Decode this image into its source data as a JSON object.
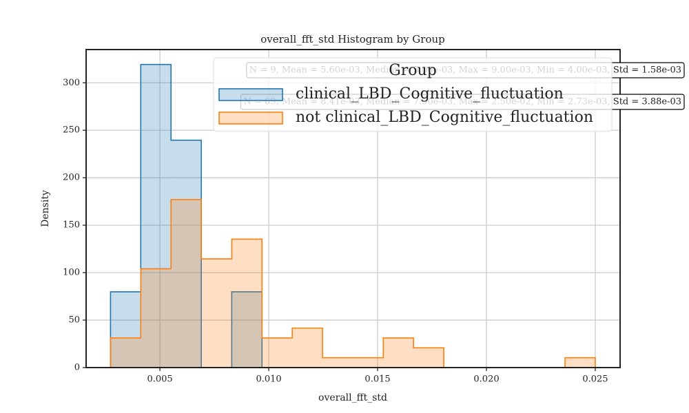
{
  "chart_data": {
    "type": "histogram",
    "title": "overall_fft_std Histogram by Group",
    "xlabel": "overall_fft_std",
    "ylabel": "Density",
    "bins": [
      0.00273,
      0.00412,
      0.00551,
      0.0069,
      0.0083,
      0.00969,
      0.01108,
      0.01247,
      0.01387,
      0.01526,
      0.01665,
      0.01804,
      0.01943,
      0.02083,
      0.02222,
      0.02361,
      0.025
    ],
    "series": [
      {
        "name": "clinical_LBD_Cognitive_fluctuation",
        "color": "#1f77b4",
        "values": [
          79.8,
          319.3,
          239.5,
          0,
          79.8,
          0,
          0,
          0,
          0,
          0,
          0,
          0,
          0,
          0,
          0,
          0
        ]
      },
      {
        "name": "not clinical_LBD_Cognitive_fluctuation",
        "color": "#ff7f0e",
        "values": [
          31.2,
          104.1,
          177.0,
          114.5,
          135.3,
          31.2,
          41.6,
          10.4,
          10.4,
          31.2,
          20.8,
          0,
          0,
          0,
          0,
          10.4
        ]
      }
    ],
    "legend_title": "Group",
    "legend": "upper right",
    "annotations": [
      "N = 9, Mean = 5.60e-03, Median = 5.00e-03, Max = 9.00e-03, Min = 4.00e-03, Std = 1.58e-03",
      "N = 69, Mean = 8.41e-03, Median = 7.50e-03, Max = 2.50e-02, Min = 2.73e-03, Std = 3.88e-03"
    ],
    "xlim": [
      0.00161,
      0.02614
    ],
    "ylim": [
      0,
      335
    ],
    "xticks": [
      {
        "value": 0.005,
        "label": "0.005"
      },
      {
        "value": 0.01,
        "label": "0.010"
      },
      {
        "value": 0.015,
        "label": "0.015"
      },
      {
        "value": 0.02,
        "label": "0.020"
      },
      {
        "value": 0.025,
        "label": "0.025"
      }
    ],
    "yticks": [
      0,
      50,
      100,
      150,
      200,
      250,
      300
    ],
    "grid": true
  }
}
